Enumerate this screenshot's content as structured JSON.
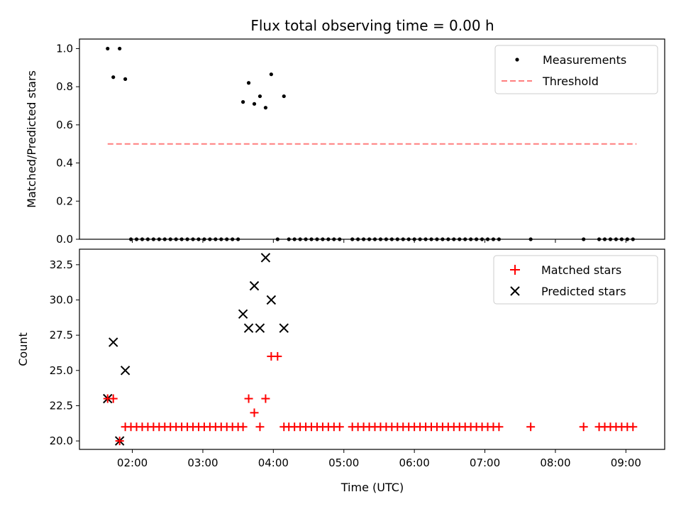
{
  "chart_data": {
    "title": "Flux total observing time = 0.00 h",
    "xlabel": "Time (UTC)",
    "x_unit": "hours (UTC, decimal)",
    "xlim": [
      1.25,
      9.55
    ],
    "xticks": [
      {
        "value": 2,
        "label": "02:00"
      },
      {
        "value": 3,
        "label": "03:00"
      },
      {
        "value": 4,
        "label": "04:00"
      },
      {
        "value": 5,
        "label": "05:00"
      },
      {
        "value": 6,
        "label": "06:00"
      },
      {
        "value": 7,
        "label": "07:00"
      },
      {
        "value": 8,
        "label": "08:00"
      },
      {
        "value": 9,
        "label": "09:00"
      }
    ],
    "top": {
      "type": "scatter",
      "ylabel": "Matched/Predicted stars",
      "ylim": [
        0,
        1.05
      ],
      "yticks": [
        "0.0",
        "0.2",
        "0.4",
        "0.6",
        "0.8",
        "1.0"
      ],
      "legend_position": "top-right",
      "measurements": {
        "name": "Measurements",
        "color": "#000000",
        "points": [
          [
            1.65,
            1.0
          ],
          [
            1.73,
            0.85
          ],
          [
            1.82,
            1.0
          ],
          [
            1.9,
            0.84
          ],
          [
            1.98,
            0
          ],
          [
            2.06,
            0
          ],
          [
            2.14,
            0
          ],
          [
            2.22,
            0
          ],
          [
            2.3,
            0
          ],
          [
            2.38,
            0
          ],
          [
            2.46,
            0
          ],
          [
            2.54,
            0
          ],
          [
            2.62,
            0
          ],
          [
            2.7,
            0
          ],
          [
            2.78,
            0
          ],
          [
            2.86,
            0
          ],
          [
            2.94,
            0
          ],
          [
            3.02,
            0
          ],
          [
            3.1,
            0
          ],
          [
            3.18,
            0
          ],
          [
            3.26,
            0
          ],
          [
            3.34,
            0
          ],
          [
            3.42,
            0
          ],
          [
            3.5,
            0
          ],
          [
            3.57,
            0.72
          ],
          [
            3.65,
            0.82
          ],
          [
            3.73,
            0.71
          ],
          [
            3.81,
            0.75
          ],
          [
            3.89,
            0.69
          ],
          [
            3.97,
            0.865
          ],
          [
            4.15,
            0.75
          ],
          [
            4.06,
            0
          ],
          [
            4.22,
            0
          ],
          [
            4.3,
            0
          ],
          [
            4.38,
            0
          ],
          [
            4.46,
            0
          ],
          [
            4.54,
            0
          ],
          [
            4.62,
            0
          ],
          [
            4.7,
            0
          ],
          [
            4.78,
            0
          ],
          [
            4.86,
            0
          ],
          [
            4.94,
            0
          ],
          [
            5.12,
            0
          ],
          [
            5.2,
            0
          ],
          [
            5.28,
            0
          ],
          [
            5.36,
            0
          ],
          [
            5.44,
            0
          ],
          [
            5.52,
            0
          ],
          [
            5.6,
            0
          ],
          [
            5.68,
            0
          ],
          [
            5.76,
            0
          ],
          [
            5.84,
            0
          ],
          [
            5.92,
            0
          ],
          [
            6.0,
            0
          ],
          [
            6.08,
            0
          ],
          [
            6.16,
            0
          ],
          [
            6.24,
            0
          ],
          [
            6.32,
            0
          ],
          [
            6.4,
            0
          ],
          [
            6.48,
            0
          ],
          [
            6.56,
            0
          ],
          [
            6.64,
            0
          ],
          [
            6.72,
            0
          ],
          [
            6.8,
            0
          ],
          [
            6.88,
            0
          ],
          [
            6.96,
            0
          ],
          [
            7.04,
            0
          ],
          [
            7.12,
            0
          ],
          [
            7.2,
            0
          ],
          [
            7.65,
            0
          ],
          [
            8.4,
            0
          ],
          [
            8.62,
            0
          ],
          [
            8.7,
            0
          ],
          [
            8.78,
            0
          ],
          [
            8.86,
            0
          ],
          [
            8.94,
            0
          ],
          [
            9.02,
            0
          ],
          [
            9.1,
            0
          ]
        ]
      },
      "threshold": {
        "name": "Threshold",
        "color": "#ff7f7f",
        "value": 0.5,
        "x_range": [
          1.65,
          9.15
        ]
      }
    },
    "bottom": {
      "type": "scatter",
      "ylabel": "Count",
      "ylim": [
        19.4,
        33.6
      ],
      "yticks": [
        "20.0",
        "22.5",
        "25.0",
        "27.5",
        "30.0",
        "32.5"
      ],
      "legend_position": "top-right",
      "matched": {
        "name": "Matched stars",
        "color": "#ff0000",
        "marker": "plus",
        "points": [
          [
            1.65,
            23
          ],
          [
            1.73,
            23
          ],
          [
            1.82,
            20
          ],
          [
            1.9,
            21
          ],
          [
            1.98,
            21
          ],
          [
            2.06,
            21
          ],
          [
            2.14,
            21
          ],
          [
            2.22,
            21
          ],
          [
            2.3,
            21
          ],
          [
            2.38,
            21
          ],
          [
            2.46,
            21
          ],
          [
            2.54,
            21
          ],
          [
            2.62,
            21
          ],
          [
            2.7,
            21
          ],
          [
            2.78,
            21
          ],
          [
            2.86,
            21
          ],
          [
            2.94,
            21
          ],
          [
            3.02,
            21
          ],
          [
            3.1,
            21
          ],
          [
            3.18,
            21
          ],
          [
            3.26,
            21
          ],
          [
            3.34,
            21
          ],
          [
            3.42,
            21
          ],
          [
            3.5,
            21
          ],
          [
            3.57,
            21
          ],
          [
            3.65,
            23
          ],
          [
            3.73,
            22
          ],
          [
            3.81,
            21
          ],
          [
            3.89,
            23
          ],
          [
            3.97,
            26
          ],
          [
            4.06,
            26
          ],
          [
            4.15,
            21
          ],
          [
            4.22,
            21
          ],
          [
            4.3,
            21
          ],
          [
            4.38,
            21
          ],
          [
            4.46,
            21
          ],
          [
            4.54,
            21
          ],
          [
            4.62,
            21
          ],
          [
            4.7,
            21
          ],
          [
            4.78,
            21
          ],
          [
            4.86,
            21
          ],
          [
            4.94,
            21
          ],
          [
            5.12,
            21
          ],
          [
            5.2,
            21
          ],
          [
            5.28,
            21
          ],
          [
            5.36,
            21
          ],
          [
            5.44,
            21
          ],
          [
            5.52,
            21
          ],
          [
            5.6,
            21
          ],
          [
            5.68,
            21
          ],
          [
            5.76,
            21
          ],
          [
            5.84,
            21
          ],
          [
            5.92,
            21
          ],
          [
            6.0,
            21
          ],
          [
            6.08,
            21
          ],
          [
            6.16,
            21
          ],
          [
            6.24,
            21
          ],
          [
            6.32,
            21
          ],
          [
            6.4,
            21
          ],
          [
            6.48,
            21
          ],
          [
            6.56,
            21
          ],
          [
            6.64,
            21
          ],
          [
            6.72,
            21
          ],
          [
            6.8,
            21
          ],
          [
            6.88,
            21
          ],
          [
            6.96,
            21
          ],
          [
            7.04,
            21
          ],
          [
            7.12,
            21
          ],
          [
            7.2,
            21
          ],
          [
            7.65,
            21
          ],
          [
            8.4,
            21
          ],
          [
            8.62,
            21
          ],
          [
            8.7,
            21
          ],
          [
            8.78,
            21
          ],
          [
            8.86,
            21
          ],
          [
            8.94,
            21
          ],
          [
            9.02,
            21
          ],
          [
            9.1,
            21
          ]
        ]
      },
      "predicted": {
        "name": "Predicted stars",
        "color": "#000000",
        "marker": "x",
        "points": [
          [
            1.65,
            23
          ],
          [
            1.73,
            27
          ],
          [
            1.82,
            20
          ],
          [
            1.9,
            25
          ],
          [
            3.57,
            29
          ],
          [
            3.65,
            28
          ],
          [
            3.73,
            31
          ],
          [
            3.81,
            28
          ],
          [
            3.89,
            33
          ],
          [
            3.97,
            30
          ],
          [
            4.15,
            28
          ]
        ]
      }
    }
  }
}
